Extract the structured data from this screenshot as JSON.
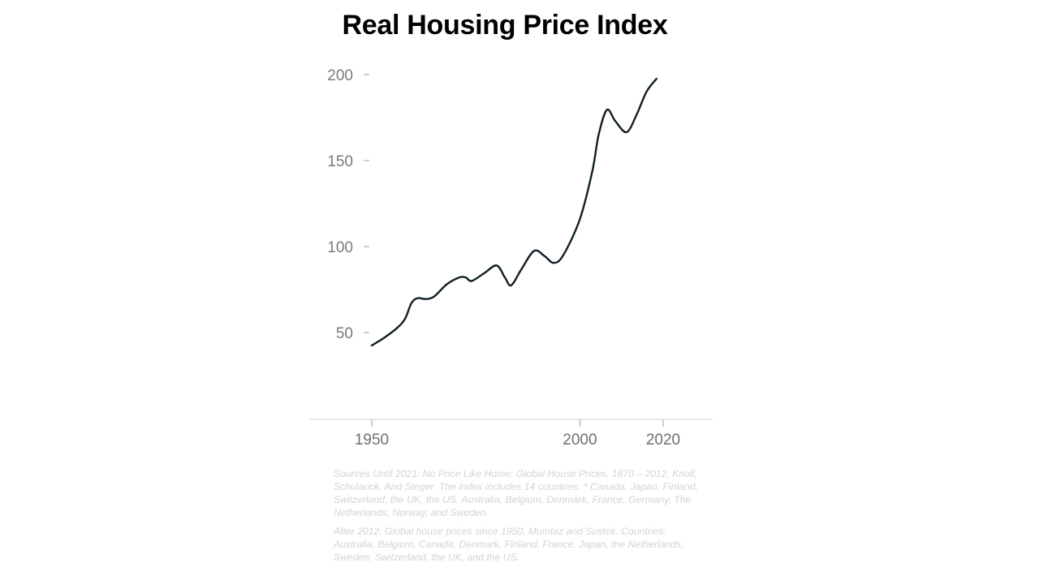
{
  "chart_data": {
    "type": "line",
    "title": "Real Housing Price Index",
    "xlabel": "",
    "ylabel": "",
    "xlim": [
      1935,
      2032
    ],
    "ylim": [
      0,
      205
    ],
    "grid": false,
    "legend": "none",
    "x_ticks": [
      1950,
      2000,
      2020
    ],
    "y_ticks": [
      50,
      100,
      150,
      200
    ],
    "series": [
      {
        "name": "Real Housing Price Index",
        "color": "#0f1f24",
        "x": [
          1950,
          1953,
          1956,
          1958,
          1959.5,
          1961,
          1963,
          1965,
          1968,
          1971,
          1972.6,
          1974,
          1977,
          1980,
          1982,
          1983.5,
          1986,
          1989,
          1991.5,
          1993.7,
          1996,
          2000,
          2003,
          2004.5,
          2006.5,
          2008.5,
          2011.2,
          2013.5,
          2016,
          2018.4
        ],
        "values": [
          42.5,
          47,
          52.5,
          58,
          67,
          70,
          69.5,
          71,
          78,
          82,
          82,
          80,
          84.5,
          89,
          82,
          77.5,
          87,
          97.5,
          94.5,
          90.5,
          95,
          116,
          144,
          165,
          179.5,
          173,
          166.5,
          176,
          190,
          197.6
        ]
      }
    ]
  },
  "notes": {
    "source_1": "Sources Until 2021: No Price Like Home: Global House Prices, 1870 – 2012, Knoll, Schularick, And Steger. The index includes 14 countries: * Canada, Japan, Finland, Switzerland, the UK, the US, Australia, Belgium, Denmark, France, Germany, The Netherlands, Norway, and Sweden.",
    "source_2": "After 2012: Global house prices since 1950, Mumtaz and Sustek. Countries: Australia, Belgium, Canada, Denmark, Finland, France, Japan, the Netherlands, Sweden, Switzerland, the UK, and the US."
  }
}
